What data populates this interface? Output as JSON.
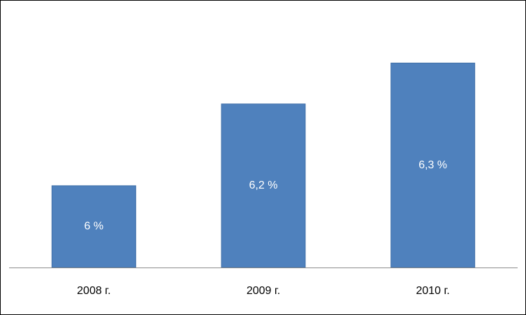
{
  "chart_data": {
    "type": "bar",
    "categories": [
      "2008 г.",
      "2009 г.",
      "2010 г."
    ],
    "values": [
      6.0,
      6.2,
      6.3
    ],
    "data_labels": [
      "6 %",
      "6,2 %",
      "6,3 %"
    ],
    "title": "",
    "xlabel": "",
    "ylabel": "",
    "ylim": [
      5.8,
      6.35
    ],
    "grid": false,
    "legend": "none",
    "colors": {
      "bar": "#4f81bd",
      "bar_border": "#3f6fa8",
      "data_label": "#ffffff",
      "axis": "#8c8c8c"
    }
  }
}
